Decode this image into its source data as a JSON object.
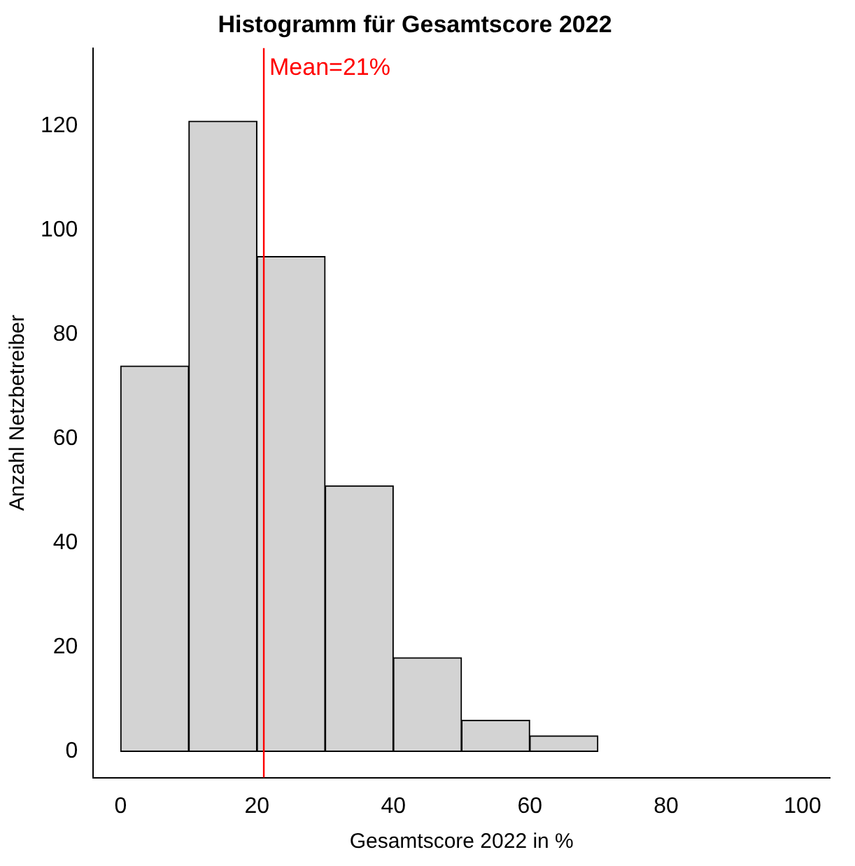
{
  "chart_data": {
    "type": "histogram",
    "title": "Histogramm für Gesamtscore 2022",
    "xlabel": "Gesamtscore 2022 in %",
    "ylabel": "Anzahl Netzbetreiber",
    "bins": [
      0,
      10,
      20,
      30,
      40,
      50,
      60,
      70
    ],
    "values": [
      74,
      121,
      95,
      51,
      18,
      6,
      3
    ],
    "color": "#d3d3d3",
    "xlim": [
      -4,
      104
    ],
    "xticks": [
      0,
      20,
      40,
      60,
      80,
      100
    ],
    "ylim": [
      -5,
      135
    ],
    "yticks": [
      0,
      20,
      40,
      60,
      80,
      100,
      120
    ],
    "ref_lines": [
      {
        "axis": "x",
        "value": 21,
        "label": "Mean=21%",
        "color": "#ff0000"
      }
    ],
    "grid": false,
    "legend": false
  }
}
